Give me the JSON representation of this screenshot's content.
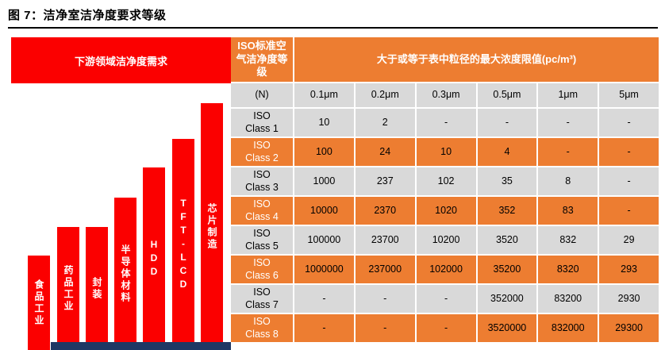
{
  "title": "图 7：洁净室洁净度要求等级",
  "colors": {
    "red": "#FB0000",
    "orange": "#ED7D31",
    "gray": "#D9D9D9",
    "navy": "#1F3864"
  },
  "chart": {
    "header": "下游领域洁净度需求",
    "bars": [
      {
        "label": "食品工业"
      },
      {
        "label": "药品工业"
      },
      {
        "label": "封装"
      },
      {
        "label": "半导体材料"
      },
      {
        "label": "HDD"
      },
      {
        "label": "TFT-LCD"
      },
      {
        "label": "芯片制造"
      }
    ]
  },
  "table": {
    "corner_header": "ISO标准空气洁净度等级",
    "main_header": "大于或等于表中粒径的最大浓度限值(pc/m³)",
    "size_row": [
      "(N)",
      "0.1μm",
      "0.2μm",
      "0.3μm",
      "0.5μm",
      "1μm",
      "5μm"
    ],
    "rows": [
      {
        "label": "ISO\nClass 1",
        "values": [
          "10",
          "2",
          "-",
          "-",
          "-",
          "-"
        ]
      },
      {
        "label": "ISO\nClass 2",
        "values": [
          "100",
          "24",
          "10",
          "4",
          "-",
          "-"
        ]
      },
      {
        "label": "ISO\nClass 3",
        "values": [
          "1000",
          "237",
          "102",
          "35",
          "8",
          "-"
        ]
      },
      {
        "label": "ISO\nClass 4",
        "values": [
          "10000",
          "2370",
          "1020",
          "352",
          "83",
          "-"
        ]
      },
      {
        "label": "ISO\nClass 5",
        "values": [
          "100000",
          "23700",
          "10200",
          "3520",
          "832",
          "29"
        ]
      },
      {
        "label": "ISO\nClass 6",
        "values": [
          "1000000",
          "237000",
          "102000",
          "35200",
          "8320",
          "293"
        ]
      },
      {
        "label": "ISO\nClass 7",
        "values": [
          "-",
          "-",
          "-",
          "352000",
          "83200",
          "2930"
        ]
      },
      {
        "label": "ISO\nClass 8",
        "values": [
          "-",
          "-",
          "-",
          "3520000",
          "832000",
          "29300"
        ]
      }
    ]
  },
  "chart_data": [
    {
      "type": "bar",
      "title": "下游领域洁净度需求",
      "categories": [
        "食品工业",
        "药品工业",
        "封装",
        "半导体材料",
        "HDD",
        "TFT-LCD",
        "芯片制造"
      ],
      "values": [
        119,
        155,
        155,
        192,
        230,
        266,
        311
      ],
      "ylabel": "",
      "xlabel": "",
      "note": "bar heights in px; qualitative ascending cleanliness requirement, no numeric axis shown"
    },
    {
      "type": "table",
      "title": "大于或等于表中粒径的最大浓度限值(pc/m³)",
      "row_header": "ISO标准空气洁净度等级 (N)",
      "columns": [
        "0.1μm",
        "0.2μm",
        "0.3μm",
        "0.5μm",
        "1μm",
        "5μm"
      ],
      "rows": [
        {
          "class": "ISO Class 1",
          "values": [
            10,
            2,
            null,
            null,
            null,
            null
          ]
        },
        {
          "class": "ISO Class 2",
          "values": [
            100,
            24,
            10,
            4,
            null,
            null
          ]
        },
        {
          "class": "ISO Class 3",
          "values": [
            1000,
            237,
            102,
            35,
            8,
            null
          ]
        },
        {
          "class": "ISO Class 4",
          "values": [
            10000,
            2370,
            1020,
            352,
            83,
            null
          ]
        },
        {
          "class": "ISO Class 5",
          "values": [
            100000,
            23700,
            10200,
            3520,
            832,
            29
          ]
        },
        {
          "class": "ISO Class 6",
          "values": [
            1000000,
            237000,
            102000,
            35200,
            8320,
            293
          ]
        },
        {
          "class": "ISO Class 7",
          "values": [
            null,
            null,
            null,
            352000,
            83200,
            2930
          ]
        },
        {
          "class": "ISO Class 8",
          "values": [
            null,
            null,
            null,
            3520000,
            832000,
            29300
          ]
        }
      ]
    }
  ]
}
